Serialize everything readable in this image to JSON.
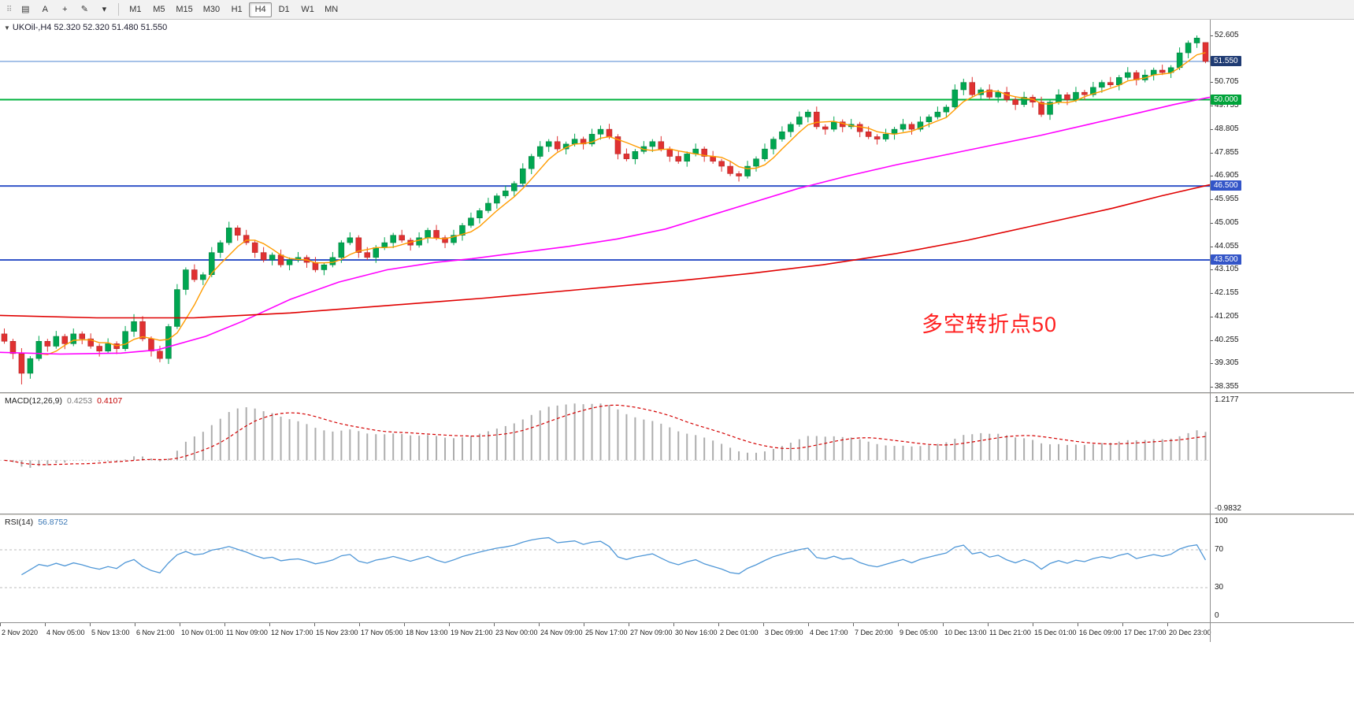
{
  "toolbar": {
    "grip_glyph": "⠿",
    "tools": [
      {
        "name": "charts-symbol",
        "glyph": "▤"
      },
      {
        "name": "text-annotation",
        "glyph": "A"
      },
      {
        "name": "crosshair",
        "glyph": "+"
      },
      {
        "name": "draw-tools",
        "glyph": "✎"
      },
      {
        "name": "draw-tools-caret",
        "glyph": "▾"
      }
    ],
    "timeframes": [
      {
        "label": "M1",
        "active": false
      },
      {
        "label": "M5",
        "active": false
      },
      {
        "label": "M15",
        "active": false
      },
      {
        "label": "M30",
        "active": false
      },
      {
        "label": "H1",
        "active": false
      },
      {
        "label": "H4",
        "active": true
      },
      {
        "label": "D1",
        "active": false
      },
      {
        "label": "W1",
        "active": false
      },
      {
        "label": "MN",
        "active": false
      }
    ]
  },
  "chart_data": [
    {
      "type": "candlestick",
      "collapse_glyph": "▼",
      "title": "UKOil-,H4 52.320 52.320 51.480 51.550",
      "symbol": "UKOil-",
      "timeframe": "H4",
      "ohlc_current": {
        "open": "52.320",
        "high": "52.320",
        "low": "51.480",
        "close": "51.550"
      },
      "ylim": [
        38.355,
        52.605
      ],
      "y_ticks": [
        52.605,
        50.705,
        49.755,
        48.805,
        47.855,
        46.905,
        45.955,
        45.005,
        44.055,
        43.105,
        42.155,
        41.205,
        40.255,
        39.305,
        38.355
      ],
      "hlines": [
        {
          "price": 51.55,
          "label": "51.550",
          "line_color": "#4d86d2",
          "label_bg": "#1f3b73",
          "width": 1
        },
        {
          "price": 50.0,
          "label": "50.000",
          "line_color": "#00b23d",
          "label_bg": "#00a33a",
          "width": 2
        },
        {
          "price": 46.5,
          "label": "46.500",
          "line_color": "#3355c8",
          "label_bg": "#3355c8",
          "width": 2
        },
        {
          "price": 43.5,
          "label": "43.500",
          "line_color": "#3355c8",
          "label_bg": "#3355c8",
          "width": 2
        }
      ],
      "up_color": "#00a651",
      "down_color": "#e03131",
      "ma_fast": {
        "period": 5,
        "color": "#ff9c00"
      },
      "ma_medium": {
        "color": "#ff00ff",
        "points": [
          [
            0,
            39.75
          ],
          [
            0.05,
            39.68
          ],
          [
            0.1,
            39.72
          ],
          [
            0.13,
            39.85
          ],
          [
            0.17,
            40.4
          ],
          [
            0.2,
            41.0
          ],
          [
            0.24,
            41.9
          ],
          [
            0.28,
            42.6
          ],
          [
            0.32,
            43.1
          ],
          [
            0.36,
            43.4
          ],
          [
            0.39,
            43.55
          ],
          [
            0.43,
            43.8
          ],
          [
            0.47,
            44.05
          ],
          [
            0.51,
            44.35
          ],
          [
            0.55,
            44.75
          ],
          [
            0.58,
            45.2
          ],
          [
            0.62,
            45.8
          ],
          [
            0.66,
            46.4
          ],
          [
            0.7,
            46.9
          ],
          [
            0.74,
            47.35
          ],
          [
            0.78,
            47.75
          ],
          [
            0.82,
            48.15
          ],
          [
            0.86,
            48.55
          ],
          [
            0.9,
            49.0
          ],
          [
            0.94,
            49.45
          ],
          [
            0.97,
            49.8
          ],
          [
            1.0,
            50.1
          ]
        ]
      },
      "ma_slow": {
        "color": "#e00000",
        "points": [
          [
            0,
            41.25
          ],
          [
            0.08,
            41.15
          ],
          [
            0.16,
            41.15
          ],
          [
            0.24,
            41.35
          ],
          [
            0.32,
            41.65
          ],
          [
            0.4,
            41.95
          ],
          [
            0.48,
            42.3
          ],
          [
            0.56,
            42.65
          ],
          [
            0.62,
            42.95
          ],
          [
            0.68,
            43.3
          ],
          [
            0.74,
            43.75
          ],
          [
            0.8,
            44.3
          ],
          [
            0.86,
            44.95
          ],
          [
            0.92,
            45.6
          ],
          [
            0.96,
            46.1
          ],
          [
            1.0,
            46.55
          ]
        ]
      },
      "annotation": {
        "text": "多空转折点50",
        "color": "#ff1f1f",
        "x_frac": 0.762,
        "price": 41.15
      },
      "candles": [
        [
          40.5,
          40.72,
          40.1,
          40.2
        ],
        [
          40.2,
          40.3,
          39.48,
          39.7
        ],
        [
          39.7,
          39.92,
          38.45,
          38.9
        ],
        [
          38.9,
          39.6,
          38.68,
          39.5
        ],
        [
          39.5,
          40.42,
          39.4,
          40.2
        ],
        [
          40.2,
          40.3,
          39.78,
          40.0
        ],
        [
          40.0,
          40.62,
          39.9,
          40.4
        ],
        [
          40.4,
          40.5,
          39.88,
          40.1
        ],
        [
          40.1,
          40.72,
          40.0,
          40.5
        ],
        [
          40.5,
          40.6,
          40.08,
          40.3
        ],
        [
          40.3,
          40.52,
          39.9,
          40.0
        ],
        [
          40.0,
          40.1,
          39.58,
          39.8
        ],
        [
          39.8,
          40.32,
          39.7,
          40.1
        ],
        [
          40.1,
          40.2,
          39.68,
          39.9
        ],
        [
          39.9,
          40.82,
          39.8,
          40.6
        ],
        [
          40.6,
          41.3,
          40.38,
          41.0
        ],
        [
          41.0,
          41.22,
          40.2,
          40.3
        ],
        [
          40.3,
          40.4,
          39.58,
          39.8
        ],
        [
          39.8,
          40.02,
          39.35,
          39.5
        ],
        [
          39.5,
          40.9,
          39.28,
          40.8
        ],
        [
          40.8,
          42.52,
          40.7,
          42.3
        ],
        [
          42.3,
          43.2,
          42.08,
          43.1
        ],
        [
          43.1,
          43.32,
          42.6,
          42.7
        ],
        [
          42.7,
          43.0,
          42.48,
          42.9
        ],
        [
          42.9,
          44.02,
          42.8,
          43.8
        ],
        [
          43.8,
          44.3,
          43.58,
          44.2
        ],
        [
          44.2,
          45.05,
          44.1,
          44.8
        ],
        [
          44.8,
          44.9,
          44.28,
          44.5
        ],
        [
          44.5,
          44.72,
          44.1,
          44.2
        ],
        [
          44.2,
          44.3,
          43.58,
          43.8
        ],
        [
          43.8,
          44.02,
          43.4,
          43.5
        ],
        [
          43.5,
          43.8,
          43.28,
          43.7
        ],
        [
          43.7,
          43.92,
          43.2,
          43.3
        ],
        [
          43.3,
          43.6,
          43.08,
          43.5
        ],
        [
          43.5,
          43.82,
          43.4,
          43.6
        ],
        [
          43.6,
          43.7,
          43.18,
          43.4
        ],
        [
          43.4,
          43.62,
          43.0,
          43.1
        ],
        [
          43.1,
          43.4,
          42.88,
          43.3
        ],
        [
          43.3,
          43.82,
          43.2,
          43.6
        ],
        [
          43.6,
          44.3,
          43.38,
          44.2
        ],
        [
          44.2,
          44.62,
          44.1,
          44.4
        ],
        [
          44.4,
          44.5,
          43.58,
          43.8
        ],
        [
          43.8,
          44.02,
          43.5,
          43.6
        ],
        [
          43.6,
          44.1,
          43.38,
          44.0
        ],
        [
          44.0,
          44.42,
          43.9,
          44.2
        ],
        [
          44.2,
          44.6,
          43.98,
          44.5
        ],
        [
          44.5,
          44.72,
          44.2,
          44.3
        ],
        [
          44.3,
          44.4,
          43.88,
          44.1
        ],
        [
          44.1,
          44.62,
          44.0,
          44.4
        ],
        [
          44.4,
          44.8,
          44.18,
          44.7
        ],
        [
          44.7,
          44.92,
          44.3,
          44.4
        ],
        [
          44.4,
          44.5,
          43.98,
          44.2
        ],
        [
          44.2,
          44.72,
          44.1,
          44.5
        ],
        [
          44.5,
          45.0,
          44.28,
          44.9
        ],
        [
          44.9,
          45.42,
          44.8,
          45.2
        ],
        [
          45.2,
          45.6,
          44.98,
          45.5
        ],
        [
          45.5,
          46.02,
          45.4,
          45.8
        ],
        [
          45.8,
          46.2,
          45.58,
          46.1
        ],
        [
          46.1,
          46.52,
          46.0,
          46.3
        ],
        [
          46.3,
          46.7,
          46.08,
          46.6
        ],
        [
          46.6,
          47.42,
          46.5,
          47.2
        ],
        [
          47.2,
          47.8,
          46.98,
          47.7
        ],
        [
          47.7,
          48.32,
          47.6,
          48.1
        ],
        [
          48.1,
          48.4,
          47.88,
          48.3
        ],
        [
          48.3,
          48.52,
          47.9,
          48.0
        ],
        [
          48.0,
          48.3,
          47.78,
          48.2
        ],
        [
          48.2,
          48.62,
          48.1,
          48.4
        ],
        [
          48.4,
          48.5,
          47.98,
          48.2
        ],
        [
          48.2,
          48.82,
          48.1,
          48.6
        ],
        [
          48.6,
          48.95,
          48.38,
          48.8
        ],
        [
          48.8,
          49.02,
          48.4,
          48.5
        ],
        [
          48.5,
          48.6,
          47.58,
          47.8
        ],
        [
          47.8,
          48.02,
          47.5,
          47.6
        ],
        [
          47.6,
          48.0,
          47.38,
          47.9
        ],
        [
          47.9,
          48.32,
          47.8,
          48.1
        ],
        [
          48.1,
          48.4,
          47.88,
          48.3
        ],
        [
          48.3,
          48.52,
          47.9,
          48.0
        ],
        [
          48.0,
          48.1,
          47.48,
          47.7
        ],
        [
          47.7,
          47.92,
          47.4,
          47.5
        ],
        [
          47.5,
          47.9,
          47.28,
          47.8
        ],
        [
          47.8,
          48.22,
          47.7,
          48.0
        ],
        [
          48.0,
          48.1,
          47.48,
          47.7
        ],
        [
          47.7,
          47.92,
          47.4,
          47.5
        ],
        [
          47.5,
          47.6,
          47.08,
          47.3
        ],
        [
          47.3,
          47.52,
          46.9,
          47.0
        ],
        [
          47.0,
          47.1,
          46.68,
          46.9
        ],
        [
          46.9,
          47.52,
          46.8,
          47.3
        ],
        [
          47.3,
          47.7,
          47.08,
          47.6
        ],
        [
          47.6,
          48.22,
          47.5,
          48.0
        ],
        [
          48.0,
          48.5,
          47.78,
          48.4
        ],
        [
          48.4,
          48.92,
          48.3,
          48.7
        ],
        [
          48.7,
          49.1,
          48.48,
          49.0
        ],
        [
          49.0,
          49.52,
          48.9,
          49.3
        ],
        [
          49.3,
          49.6,
          49.08,
          49.5
        ],
        [
          49.5,
          49.72,
          48.8,
          48.9
        ],
        [
          48.9,
          49.0,
          48.58,
          48.8
        ],
        [
          48.8,
          49.32,
          48.7,
          49.1
        ],
        [
          49.1,
          49.2,
          48.68,
          48.9
        ],
        [
          48.9,
          49.22,
          48.8,
          49.0
        ],
        [
          49.0,
          49.1,
          48.48,
          48.7
        ],
        [
          48.7,
          48.92,
          48.4,
          48.5
        ],
        [
          48.5,
          48.6,
          48.18,
          48.4
        ],
        [
          48.4,
          48.82,
          48.3,
          48.6
        ],
        [
          48.6,
          48.9,
          48.38,
          48.8
        ],
        [
          48.8,
          49.22,
          48.7,
          49.0
        ],
        [
          49.0,
          49.1,
          48.58,
          48.8
        ],
        [
          48.8,
          49.32,
          48.7,
          49.1
        ],
        [
          49.1,
          49.4,
          48.88,
          49.3
        ],
        [
          49.3,
          49.72,
          49.2,
          49.5
        ],
        [
          49.5,
          49.8,
          49.28,
          49.7
        ],
        [
          49.7,
          50.62,
          49.6,
          50.4
        ],
        [
          50.4,
          50.85,
          50.18,
          50.7
        ],
        [
          50.7,
          50.92,
          50.1,
          50.2
        ],
        [
          50.2,
          50.5,
          49.98,
          50.4
        ],
        [
          50.4,
          50.62,
          50.0,
          50.1
        ],
        [
          50.1,
          50.4,
          49.88,
          50.3
        ],
        [
          50.3,
          50.52,
          49.9,
          50.0
        ],
        [
          50.0,
          50.1,
          49.58,
          49.8
        ],
        [
          49.8,
          50.32,
          49.7,
          50.1
        ],
        [
          50.1,
          50.2,
          49.68,
          49.9
        ],
        [
          49.9,
          50.12,
          49.3,
          49.4
        ],
        [
          49.4,
          50.0,
          49.18,
          49.9
        ],
        [
          49.9,
          50.42,
          49.8,
          50.2
        ],
        [
          50.2,
          50.3,
          49.78,
          50.0
        ],
        [
          50.0,
          50.52,
          49.9,
          50.3
        ],
        [
          50.3,
          50.4,
          49.98,
          50.2
        ],
        [
          50.2,
          50.72,
          50.1,
          50.5
        ],
        [
          50.5,
          50.8,
          50.28,
          50.7
        ],
        [
          50.7,
          50.92,
          50.5,
          50.6
        ],
        [
          50.6,
          51.0,
          50.38,
          50.9
        ],
        [
          50.9,
          51.32,
          50.8,
          51.1
        ],
        [
          51.1,
          51.2,
          50.58,
          50.8
        ],
        [
          50.8,
          51.22,
          50.7,
          51.0
        ],
        [
          51.0,
          51.3,
          50.78,
          51.2
        ],
        [
          51.2,
          51.42,
          51.0,
          51.1
        ],
        [
          51.1,
          51.4,
          50.88,
          51.3
        ],
        [
          51.3,
          52.12,
          51.2,
          51.9
        ],
        [
          51.9,
          52.4,
          51.68,
          52.3
        ],
        [
          52.3,
          52.605,
          52.1,
          52.5
        ],
        [
          52.32,
          52.32,
          51.48,
          51.55
        ]
      ]
    },
    {
      "type": "macd",
      "label": "MACD(12,26,9)",
      "value_main": "0.4253",
      "value_signal": "0.4107",
      "params": {
        "fast": 12,
        "slow": 26,
        "signal": 9
      },
      "ylim": [
        -0.9832,
        1.2177
      ],
      "y_top_label": "1.2177",
      "y_bottom_label": "-0.9832",
      "histogram_color": "#adadad",
      "signal_color": "#d40000"
    },
    {
      "type": "rsi",
      "label": "RSI(14)",
      "value": "56.8752",
      "period": 14,
      "ylim": [
        0,
        100
      ],
      "levels": [
        70,
        30
      ],
      "y_labels": [
        100,
        70,
        30,
        0
      ],
      "line_color": "#4f97d7"
    }
  ],
  "time_axis": {
    "labels": [
      "2 Nov 2020",
      "4 Nov 05:00",
      "5 Nov 13:00",
      "6 Nov 21:00",
      "10 Nov 01:00",
      "11 Nov 09:00",
      "12 Nov 17:00",
      "15 Nov 23:00",
      "17 Nov 05:00",
      "18 Nov 13:00",
      "19 Nov 21:00",
      "23 Nov 00:00",
      "24 Nov 09:00",
      "25 Nov 17:00",
      "27 Nov 09:00",
      "30 Nov 16:00",
      "2 Dec 01:00",
      "3 Dec 09:00",
      "4 Dec 17:00",
      "7 Dec 20:00",
      "9 Dec 05:00",
      "10 Dec 13:00",
      "11 Dec 21:00",
      "15 Dec 01:00",
      "16 Dec 09:00",
      "17 Dec 17:00",
      "20 Dec 23:00"
    ]
  }
}
